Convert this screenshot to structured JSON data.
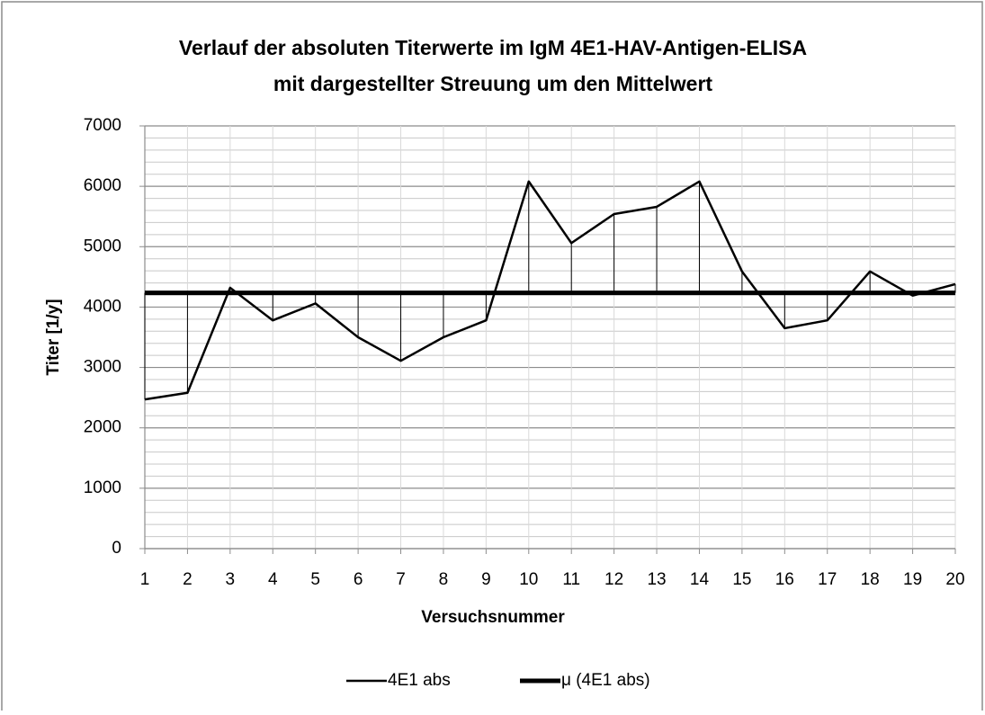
{
  "chart_data": {
    "type": "line",
    "title": [
      "Verlauf der absoluten Titerwerte im IgM 4E1-HAV-Antigen-ELISA",
      "mit dargestellter Streuung um den Mittelwert"
    ],
    "x_label": "Versuchsnummer",
    "y_label": "Titer [1/y]",
    "x": [
      1,
      2,
      3,
      4,
      5,
      6,
      7,
      8,
      9,
      10,
      11,
      12,
      13,
      14,
      15,
      16,
      17,
      18,
      19,
      20
    ],
    "series": [
      {
        "name": "4E1 abs",
        "color": "#000000",
        "line_width": 2.5,
        "values": [
          2470,
          2580,
          4320,
          3780,
          4060,
          3500,
          3110,
          3500,
          3780,
          6080,
          5060,
          5540,
          5660,
          6080,
          4590,
          3650,
          3780,
          4590,
          4190,
          4380
        ]
      },
      {
        "name": "μ (4E1 abs)",
        "color": "#000000",
        "line_width": 5,
        "values": [
          4235,
          4235,
          4235,
          4235,
          4235,
          4235,
          4235,
          4235,
          4235,
          4235,
          4235,
          4235,
          4235,
          4235,
          4235,
          4235,
          4235,
          4235,
          4235,
          4235
        ]
      }
    ],
    "drop_lines": true,
    "xlim": [
      1,
      20
    ],
    "xticks": [
      1,
      2,
      3,
      4,
      5,
      6,
      7,
      8,
      9,
      10,
      11,
      12,
      13,
      14,
      15,
      16,
      17,
      18,
      19,
      20
    ],
    "ylim": [
      0,
      7000
    ],
    "yticks": [
      0,
      1000,
      2000,
      3000,
      4000,
      5000,
      6000,
      7000
    ],
    "y_minor_ticks": [
      200,
      400,
      600,
      800,
      1200,
      1400,
      1600,
      1800,
      2200,
      2400,
      2600,
      2800,
      3200,
      3400,
      3600,
      3800,
      4200,
      4400,
      4600,
      4800,
      5200,
      5400,
      5600,
      5800,
      6200,
      6400,
      6600,
      6800
    ],
    "grid": true,
    "legend": "bottom"
  }
}
